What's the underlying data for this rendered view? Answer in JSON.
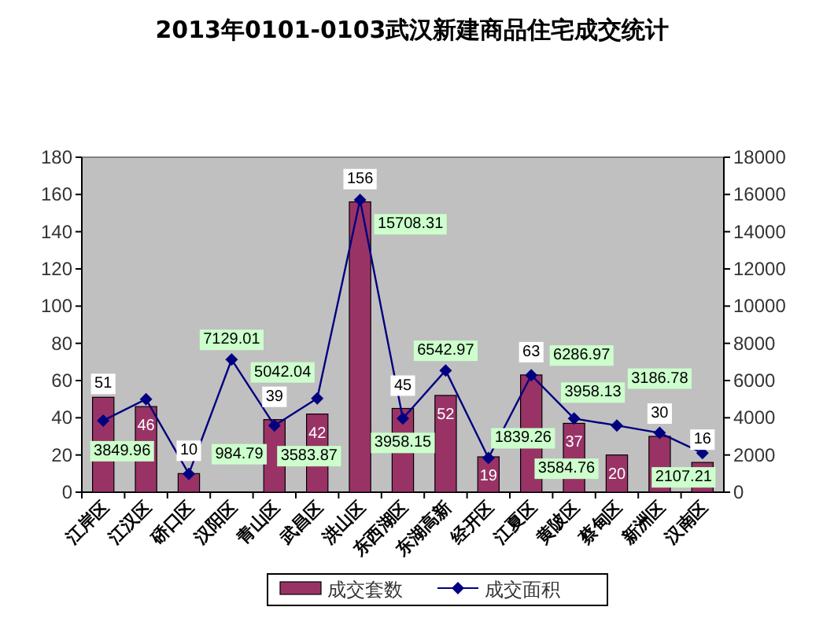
{
  "chart_data": {
    "type": "bar",
    "title": "2013年0101-0103武汉新建商品住宅成交统计",
    "categories": [
      "江岸区",
      "江汉区",
      "硚口区",
      "汉阳区",
      "青山区",
      "武昌区",
      "洪山区",
      "东西湖区",
      "东湖高新",
      "经开区",
      "江夏区",
      "黄陂区",
      "蔡甸区",
      "新洲区",
      "汉南区"
    ],
    "series": [
      {
        "name": "成交套数",
        "color": "#993366",
        "values": [
          51,
          46,
          10,
          null,
          39,
          42,
          156,
          45,
          52,
          19,
          63,
          37,
          20,
          30,
          16
        ],
        "value_labels": [
          "51",
          "46",
          "10",
          null,
          "39",
          "42",
          "156",
          "45",
          "52",
          "19",
          "63",
          "37",
          "20",
          "30",
          "16"
        ]
      },
      {
        "name": "成交面积",
        "type": "line",
        "axis": "y2",
        "color": "#000080",
        "marker": "diamond",
        "values": [
          3849.96,
          5000,
          984.79,
          7129.01,
          3583.87,
          5042.04,
          15708.31,
          3958.15,
          6542.97,
          1839.26,
          6286.97,
          3958.13,
          3584.76,
          3186.78,
          2107.21
        ],
        "value_labels": [
          "3849.96",
          null,
          "984.79",
          "7129.01",
          "3583.87",
          "5042.04",
          "15708.31",
          "3958.15",
          "6542.97",
          "1839.26",
          "6286.97",
          "3958.13",
          "3584.76",
          "3186.78",
          "2107.21"
        ]
      }
    ],
    "ylim": [
      0,
      180
    ],
    "yticks": [
      0,
      20,
      40,
      60,
      80,
      100,
      120,
      140,
      160,
      180
    ],
    "y2lim": [
      0,
      18000
    ],
    "y2ticks": [
      0,
      2000,
      4000,
      6000,
      8000,
      10000,
      12000,
      14000,
      16000,
      18000
    ],
    "legend": "bottom"
  }
}
